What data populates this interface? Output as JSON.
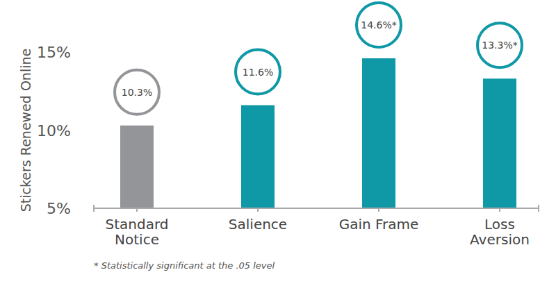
{
  "chart_data": {
    "type": "bar",
    "y_label": "Stickers Renewed Online",
    "categories": [
      "Standard\nNotice",
      "Salience",
      "Gain Frame",
      "Loss\nAversion"
    ],
    "values": [
      10.3,
      11.6,
      14.6,
      13.3
    ],
    "value_labels": [
      "10.3%",
      "11.6%",
      "14.6%*",
      "13.3%*"
    ],
    "colors": [
      "#939598",
      "#0f98a6",
      "#0f98a6",
      "#0f98a6"
    ],
    "ylim": [
      5,
      15
    ],
    "yticks": [
      {
        "value": 5,
        "label": "5%"
      },
      {
        "value": 10,
        "label": "10%"
      },
      {
        "value": 15,
        "label": "15%"
      }
    ],
    "grid": false,
    "data_labels": true,
    "annotations": [
      "* Statistically significant at the .05 level"
    ]
  }
}
